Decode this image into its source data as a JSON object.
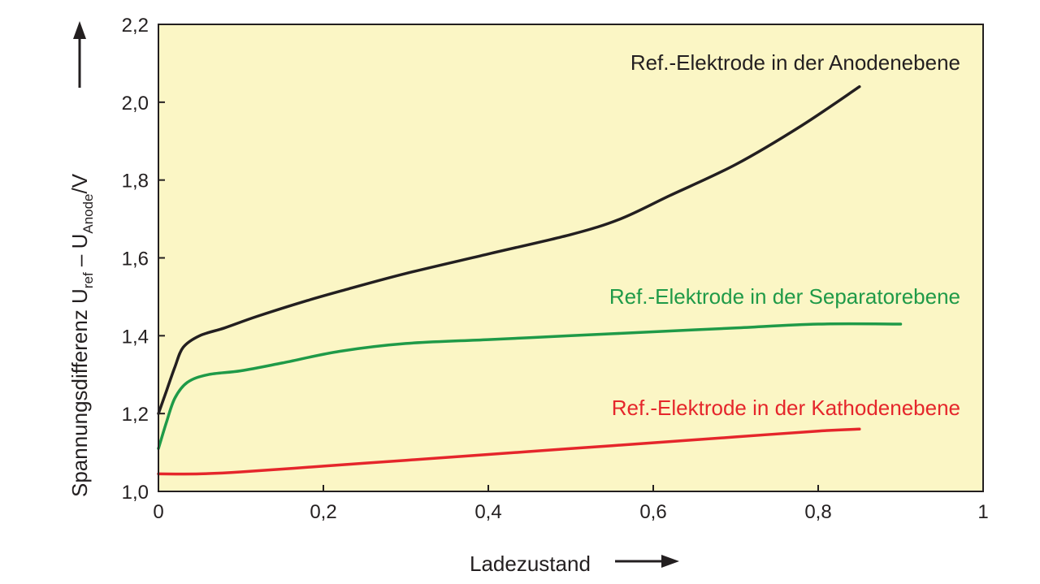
{
  "chart_data": {
    "type": "line",
    "xlabel": "Ladezustand",
    "ylabel": {
      "main": "Spannungsdifferenz U",
      "sub1": "ref",
      "mid": " – U",
      "sub2": "Anode",
      "unit": "/V"
    },
    "xlim": [
      0,
      1
    ],
    "ylim": [
      1.0,
      2.2
    ],
    "xticks": [
      {
        "value": 0,
        "label": "0"
      },
      {
        "value": 0.2,
        "label": "0,2"
      },
      {
        "value": 0.4,
        "label": "0,4"
      },
      {
        "value": 0.6,
        "label": "0,6"
      },
      {
        "value": 0.8,
        "label": "0,8"
      },
      {
        "value": 1,
        "label": "1"
      }
    ],
    "yticks": [
      {
        "value": 1.0,
        "label": "1,0"
      },
      {
        "value": 1.2,
        "label": "1,2"
      },
      {
        "value": 1.4,
        "label": "1,4"
      },
      {
        "value": 1.6,
        "label": "1,6"
      },
      {
        "value": 1.8,
        "label": "1,8"
      },
      {
        "value": 2.0,
        "label": "2,0"
      },
      {
        "value": 2.2,
        "label": "2,2"
      }
    ],
    "grid": false,
    "background_color": "#fbf6c5",
    "series": [
      {
        "name": "Ref.-Elektrode in der Anodenebene",
        "color": "#231f20",
        "x": [
          0,
          0.01,
          0.02,
          0.03,
          0.05,
          0.08,
          0.12,
          0.18,
          0.23,
          0.3,
          0.4,
          0.5,
          0.56,
          0.62,
          0.7,
          0.78,
          0.85
        ],
        "y": [
          1.2,
          1.26,
          1.32,
          1.37,
          1.4,
          1.42,
          1.45,
          1.49,
          1.52,
          1.56,
          1.61,
          1.66,
          1.7,
          1.76,
          1.84,
          1.94,
          2.04
        ]
      },
      {
        "name": "Ref.-Elektrode in der Separatorebene",
        "color": "#1f9a48",
        "x": [
          0,
          0.01,
          0.02,
          0.035,
          0.06,
          0.1,
          0.15,
          0.22,
          0.3,
          0.4,
          0.5,
          0.6,
          0.7,
          0.8,
          0.9
        ],
        "y": [
          1.11,
          1.18,
          1.24,
          1.28,
          1.3,
          1.31,
          1.33,
          1.36,
          1.38,
          1.39,
          1.4,
          1.41,
          1.42,
          1.43,
          1.43
        ]
      },
      {
        "name": "Ref.-Elektrode in der Kathodenebene",
        "color": "#e5262b",
        "x": [
          0,
          0.05,
          0.1,
          0.2,
          0.3,
          0.4,
          0.5,
          0.6,
          0.7,
          0.8,
          0.85
        ],
        "y": [
          1.045,
          1.045,
          1.05,
          1.065,
          1.08,
          1.095,
          1.11,
          1.125,
          1.14,
          1.155,
          1.16
        ]
      }
    ]
  }
}
